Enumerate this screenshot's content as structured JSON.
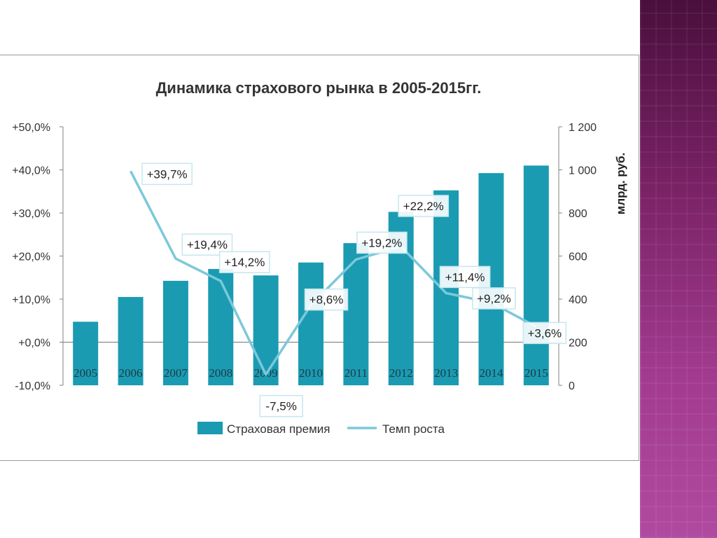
{
  "chart_data": {
    "type": "bar+line",
    "title": "Динамика страхового рынка в 2005-2015гг.",
    "categories": [
      "2005",
      "2006",
      "2007",
      "2008",
      "2009",
      "2010",
      "2011",
      "2012",
      "2013",
      "2014",
      "2015"
    ],
    "left_axis": {
      "ticks": [
        "+50,0%",
        "+40,0%",
        "+30,0%",
        "+20,0%",
        "+10,0%",
        "+0,0%",
        "-10,0%"
      ],
      "range": [
        -10,
        50
      ]
    },
    "right_axis": {
      "label": "млрд. руб.",
      "ticks": [
        "1 200",
        "1 000",
        "800",
        "600",
        "400",
        "200",
        "0"
      ],
      "range": [
        0,
        1200
      ]
    },
    "series": [
      {
        "name": "Страховая премия",
        "type": "bar",
        "axis": "right",
        "color": "#1a9bb2",
        "values": [
          295,
          410,
          485,
          540,
          510,
          570,
          660,
          805,
          905,
          985,
          1020
        ]
      },
      {
        "name": "Темп роста",
        "type": "line",
        "axis": "left",
        "color": "#7cc8db",
        "values": [
          null,
          39.7,
          19.4,
          14.2,
          -7.5,
          8.6,
          19.2,
          22.2,
          11.4,
          9.2,
          3.6
        ],
        "labels": [
          "",
          "+39,7%",
          "+19,4%",
          "+14,2%",
          "-7,5%",
          "+8,6%",
          "+19,2%",
          "+22,2%",
          "+11,4%",
          "+9,2%",
          "+3,6%"
        ]
      }
    ],
    "legend": {
      "placement": "bottom",
      "entries": [
        "Страховая премия",
        "Темп роста"
      ]
    }
  }
}
